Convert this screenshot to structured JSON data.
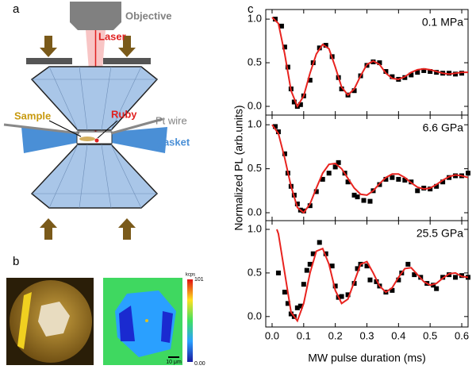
{
  "panels": {
    "a": {
      "label": "a",
      "objective": "Objective",
      "laser": "Laser",
      "sample": "Sample",
      "ruby": "Ruby",
      "pt_wire": "Pt wire",
      "gasket": "gasket"
    },
    "b": {
      "label": "b",
      "colorbar_unit": "kcps",
      "colorbar_max": "101",
      "colorbar_min": "0.00",
      "scale_bar": "10 μm"
    },
    "c": {
      "label": "c"
    }
  },
  "chart_data": [
    {
      "type": "line",
      "annotation": "0.1 MPa",
      "xlim": [
        -0.02,
        0.62
      ],
      "ylim": [
        -0.1,
        1.11
      ],
      "yticks": [
        {
          "value": 0,
          "label": "0.0"
        },
        {
          "value": 0.5,
          "label": "0.5"
        },
        {
          "value": 1,
          "label": "1.0"
        }
      ],
      "series": [
        {
          "color": "#000000",
          "marker": "square",
          "x": [
            0.01,
            0.03,
            0.04,
            0.05,
            0.06,
            0.07,
            0.08,
            0.09,
            0.1,
            0.12,
            0.13,
            0.15,
            0.17,
            0.19,
            0.21,
            0.22,
            0.24,
            0.26,
            0.28,
            0.3,
            0.32,
            0.34,
            0.36,
            0.38,
            0.4,
            0.42,
            0.44,
            0.46,
            0.48,
            0.5,
            0.52,
            0.54,
            0.56,
            0.58,
            0.6
          ],
          "values": [
            1.0,
            0.92,
            0.68,
            0.45,
            0.2,
            0.05,
            0.0,
            0.02,
            0.12,
            0.3,
            0.5,
            0.67,
            0.7,
            0.57,
            0.33,
            0.2,
            0.13,
            0.18,
            0.35,
            0.47,
            0.51,
            0.5,
            0.4,
            0.34,
            0.31,
            0.33,
            0.36,
            0.39,
            0.41,
            0.4,
            0.39,
            0.38,
            0.38,
            0.37,
            0.38
          ]
        },
        {
          "color": "#e8231f",
          "marker": "none",
          "x": [
            0.0,
            0.02,
            0.04,
            0.06,
            0.08,
            0.1,
            0.12,
            0.14,
            0.16,
            0.18,
            0.2,
            0.22,
            0.24,
            0.26,
            0.28,
            0.3,
            0.32,
            0.34,
            0.36,
            0.38,
            0.4,
            0.42,
            0.44,
            0.46,
            0.48,
            0.5,
            0.52,
            0.54,
            0.56,
            0.58,
            0.6,
            0.62
          ],
          "values": [
            1.02,
            0.95,
            0.6,
            0.18,
            0.0,
            0.12,
            0.38,
            0.6,
            0.71,
            0.66,
            0.45,
            0.22,
            0.13,
            0.2,
            0.35,
            0.48,
            0.52,
            0.48,
            0.38,
            0.32,
            0.31,
            0.34,
            0.39,
            0.42,
            0.43,
            0.42,
            0.4,
            0.38,
            0.37,
            0.38,
            0.39,
            0.39
          ]
        }
      ]
    },
    {
      "type": "line",
      "annotation": "6.6 GPa",
      "ylabel": "Normalized PL (arb.units)",
      "xlim": [
        -0.02,
        0.62
      ],
      "ylim": [
        -0.09,
        1.11
      ],
      "yticks": [
        {
          "value": 0,
          "label": "0.0"
        },
        {
          "value": 0.5,
          "label": "0.5"
        },
        {
          "value": 1,
          "label": "1.0"
        }
      ],
      "series": [
        {
          "color": "#000000",
          "marker": "square",
          "x": [
            0.01,
            0.02,
            0.04,
            0.05,
            0.06,
            0.07,
            0.08,
            0.09,
            0.1,
            0.12,
            0.14,
            0.16,
            0.18,
            0.2,
            0.21,
            0.23,
            0.24,
            0.26,
            0.27,
            0.29,
            0.31,
            0.32,
            0.34,
            0.36,
            0.38,
            0.4,
            0.42,
            0.44,
            0.46,
            0.48,
            0.5,
            0.52,
            0.54,
            0.56,
            0.58,
            0.6,
            0.62
          ],
          "values": [
            0.98,
            0.92,
            0.67,
            0.45,
            0.3,
            0.2,
            0.1,
            0.03,
            0.02,
            0.08,
            0.24,
            0.38,
            0.45,
            0.52,
            0.57,
            0.45,
            0.35,
            0.2,
            0.18,
            0.14,
            0.13,
            0.25,
            0.32,
            0.38,
            0.4,
            0.38,
            0.37,
            0.35,
            0.25,
            0.28,
            0.27,
            0.3,
            0.35,
            0.4,
            0.42,
            0.42,
            0.45
          ]
        },
        {
          "color": "#e8231f",
          "marker": "none",
          "x": [
            0.0,
            0.02,
            0.04,
            0.06,
            0.08,
            0.1,
            0.12,
            0.14,
            0.16,
            0.18,
            0.2,
            0.22,
            0.24,
            0.26,
            0.28,
            0.3,
            0.32,
            0.34,
            0.36,
            0.38,
            0.4,
            0.42,
            0.44,
            0.46,
            0.48,
            0.5,
            0.52,
            0.54,
            0.56,
            0.58,
            0.6,
            0.62
          ],
          "values": [
            1.0,
            0.9,
            0.62,
            0.3,
            0.06,
            0.0,
            0.1,
            0.28,
            0.45,
            0.55,
            0.56,
            0.5,
            0.39,
            0.28,
            0.21,
            0.2,
            0.25,
            0.33,
            0.4,
            0.44,
            0.44,
            0.4,
            0.34,
            0.29,
            0.27,
            0.28,
            0.32,
            0.37,
            0.41,
            0.43,
            0.42,
            0.4
          ]
        }
      ]
    },
    {
      "type": "line",
      "annotation": "25.5 GPa",
      "xlabel": "MW pulse duration (ms)",
      "xlim": [
        -0.02,
        0.62
      ],
      "ylim": [
        -0.12,
        1.1
      ],
      "xticks": [
        {
          "value": 0,
          "label": "0.0"
        },
        0.1,
        0.2,
        0.3,
        0.4,
        0.5,
        0.6
      ],
      "yticks": [
        {
          "value": 0,
          "label": "0.0"
        },
        {
          "value": 0.5,
          "label": "0.5"
        },
        {
          "value": 1,
          "label": "1.0"
        }
      ],
      "series": [
        {
          "color": "#000000",
          "marker": "square",
          "x": [
            0.02,
            0.04,
            0.05,
            0.06,
            0.07,
            0.08,
            0.09,
            0.1,
            0.11,
            0.12,
            0.13,
            0.15,
            0.17,
            0.19,
            0.2,
            0.21,
            0.22,
            0.24,
            0.26,
            0.27,
            0.28,
            0.3,
            0.31,
            0.33,
            0.34,
            0.36,
            0.38,
            0.4,
            0.41,
            0.43,
            0.45,
            0.47,
            0.49,
            0.51,
            0.52,
            0.54,
            0.56,
            0.58,
            0.6,
            0.62
          ],
          "values": [
            0.5,
            0.28,
            0.15,
            0.03,
            0.0,
            0.1,
            0.12,
            0.37,
            0.53,
            0.6,
            0.72,
            0.85,
            0.72,
            0.58,
            0.35,
            0.22,
            0.23,
            0.25,
            0.38,
            0.55,
            0.6,
            0.58,
            0.42,
            0.4,
            0.35,
            0.28,
            0.3,
            0.42,
            0.5,
            0.6,
            0.48,
            0.45,
            0.38,
            0.36,
            0.32,
            0.45,
            0.48,
            0.45,
            0.47,
            0.45
          ]
        },
        {
          "color": "#e8231f",
          "marker": "none",
          "x": [
            0.015,
            0.02,
            0.04,
            0.06,
            0.08,
            0.1,
            0.12,
            0.14,
            0.16,
            0.18,
            0.2,
            0.22,
            0.24,
            0.26,
            0.28,
            0.3,
            0.32,
            0.34,
            0.36,
            0.38,
            0.4,
            0.42,
            0.44,
            0.46,
            0.48,
            0.5,
            0.52,
            0.54,
            0.56,
            0.58,
            0.6,
            0.62
          ],
          "values": [
            1.0,
            0.95,
            0.5,
            0.05,
            -0.05,
            0.15,
            0.5,
            0.75,
            0.78,
            0.6,
            0.3,
            0.15,
            0.2,
            0.4,
            0.6,
            0.63,
            0.5,
            0.35,
            0.28,
            0.33,
            0.45,
            0.55,
            0.56,
            0.48,
            0.4,
            0.36,
            0.38,
            0.44,
            0.49,
            0.5,
            0.46,
            0.45
          ]
        }
      ]
    }
  ]
}
